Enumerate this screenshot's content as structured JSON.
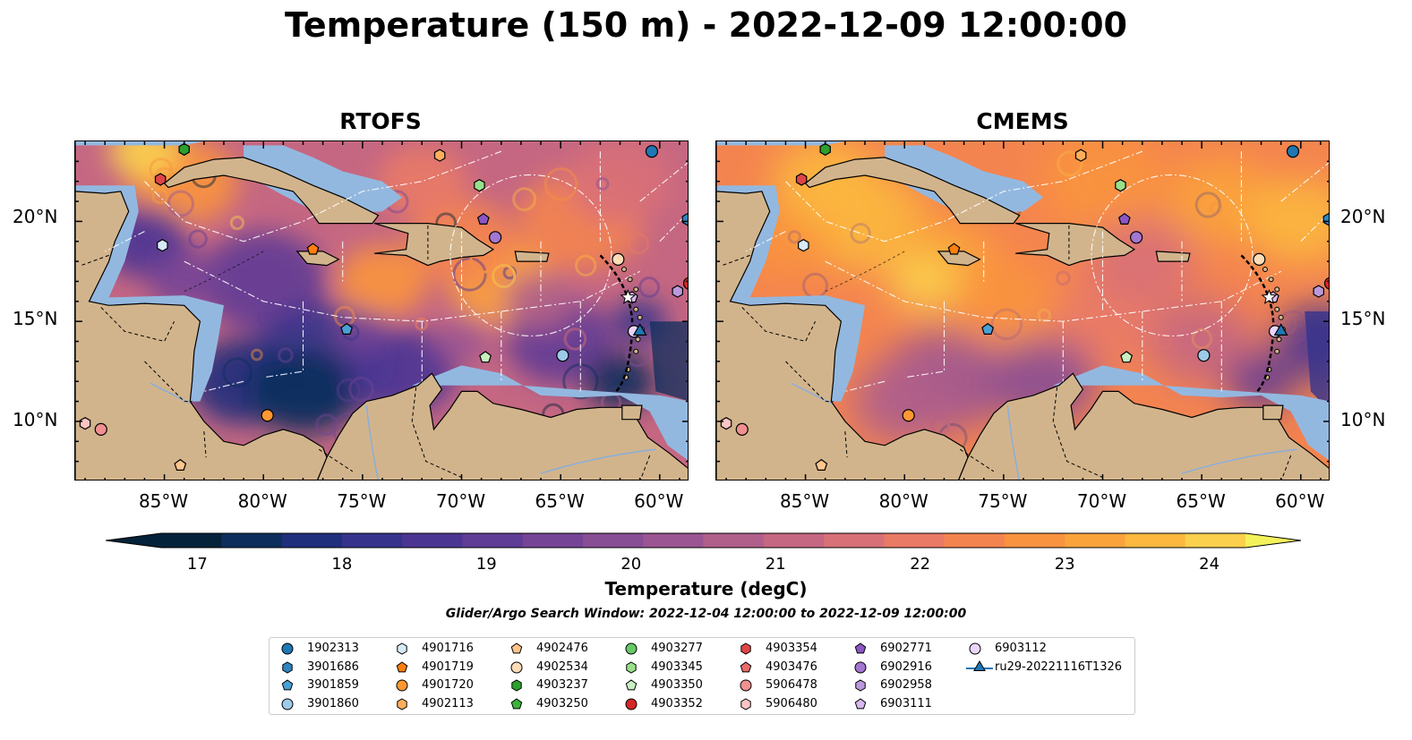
{
  "title": "Temperature (150 m) - 2022-12-09 12:00:00",
  "panels": [
    {
      "title": "RTOFS"
    },
    {
      "title": "CMEMS"
    }
  ],
  "axes": {
    "lon_ticks": [
      "85°W",
      "80°W",
      "75°W",
      "70°W",
      "65°W",
      "60°W"
    ],
    "lat_ticks": [
      "20°N",
      "15°N",
      "10°N"
    ]
  },
  "colorbar": {
    "label": "Temperature (degC)",
    "ticks": [
      "17",
      "18",
      "19",
      "20",
      "21",
      "22",
      "23",
      "24"
    ],
    "min": 17,
    "max": 24.5,
    "colors": [
      "#04223a",
      "#0d2e5c",
      "#1f2f7c",
      "#35338c",
      "#4b3593",
      "#5f3c95",
      "#754496",
      "#874d95",
      "#9b5592",
      "#b05f8b",
      "#c56782",
      "#d87078",
      "#e97a66",
      "#f4844f",
      "#f9933f",
      "#fba33b",
      "#fcb83f",
      "#fbd04c"
    ],
    "extend_low_color": "#04223a",
    "extend_high_color": "#f4f25a"
  },
  "search_window": "Glider/Argo Search Window: 2022-12-04 12:00:00 to 2022-12-09 12:00:00",
  "legend": [
    {
      "label": "1902313",
      "marker": "circle",
      "color": "#1f77b4"
    },
    {
      "label": "3901686",
      "marker": "hexagon",
      "color": "#2f85c1"
    },
    {
      "label": "3901859",
      "marker": "pentagon",
      "color": "#4aa0d5"
    },
    {
      "label": "3901860",
      "marker": "circle",
      "color": "#9ecae9"
    },
    {
      "label": "4901716",
      "marker": "hexagon",
      "color": "#d6eaf8"
    },
    {
      "label": "4901719",
      "marker": "pentagon",
      "color": "#ff7f0e"
    },
    {
      "label": "4901720",
      "marker": "circle",
      "color": "#ff9832"
    },
    {
      "label": "4902113",
      "marker": "hexagon",
      "color": "#ffae5c"
    },
    {
      "label": "4902476",
      "marker": "pentagon",
      "color": "#ffc58c"
    },
    {
      "label": "4902534",
      "marker": "circle",
      "color": "#ffdcb8"
    },
    {
      "label": "4903237",
      "marker": "hexagon",
      "color": "#2ca02c"
    },
    {
      "label": "4903250",
      "marker": "pentagon",
      "color": "#3cb43c"
    },
    {
      "label": "4903277",
      "marker": "circle",
      "color": "#66c966"
    },
    {
      "label": "4903345",
      "marker": "hexagon",
      "color": "#98df8a"
    },
    {
      "label": "4903350",
      "marker": "pentagon",
      "color": "#c8f0c0"
    },
    {
      "label": "4903352",
      "marker": "circle",
      "color": "#d62728"
    },
    {
      "label": "4903354",
      "marker": "hexagon",
      "color": "#e04546"
    },
    {
      "label": "4903476",
      "marker": "pentagon",
      "color": "#ea6a6a"
    },
    {
      "label": "5906478",
      "marker": "circle",
      "color": "#f09090"
    },
    {
      "label": "5906480",
      "marker": "hexagon",
      "color": "#ffc4c4"
    },
    {
      "label": "6902771",
      "marker": "pentagon",
      "color": "#8c56c4"
    },
    {
      "label": "6902916",
      "marker": "circle",
      "color": "#a377d1"
    },
    {
      "label": "6902958",
      "marker": "hexagon",
      "color": "#bb99de"
    },
    {
      "label": "6903111",
      "marker": "pentagon",
      "color": "#d6b8ee"
    },
    {
      "label": "6903112",
      "marker": "circle",
      "color": "#ead6fa"
    },
    {
      "label": "ru29-20221116T1326",
      "marker": "triangle-line",
      "color": "#1f77b4"
    }
  ],
  "map_extent": {
    "lon": [
      -89.5,
      -58.5
    ],
    "lat": [
      7,
      24
    ]
  },
  "map_colors": {
    "land": "#d2b48c",
    "shallow": "#93b8e0",
    "deep_pacific": "#04223a"
  },
  "observations": [
    {
      "id": "1902313",
      "lon": -60.4,
      "lat": 23.5
    },
    {
      "id": "3901686",
      "lon": -58.6,
      "lat": 20.1
    },
    {
      "id": "3901859",
      "lon": -75.8,
      "lat": 14.6
    },
    {
      "id": "3901860",
      "lon": -64.9,
      "lat": 13.3
    },
    {
      "id": "4901716",
      "lon": -85.1,
      "lat": 18.8
    },
    {
      "id": "4901719",
      "lon": -77.5,
      "lat": 18.6
    },
    {
      "id": "4901720",
      "lon": -79.8,
      "lat": 10.3
    },
    {
      "id": "4902113",
      "lon": -71.1,
      "lat": 23.3
    },
    {
      "id": "4902476",
      "lon": -84.2,
      "lat": 7.8
    },
    {
      "id": "4902534",
      "lon": -62.1,
      "lat": 18.1
    },
    {
      "id": "4903237",
      "lon": -84.0,
      "lat": 23.6
    },
    {
      "id": "4903345",
      "lon": -69.1,
      "lat": 21.8
    },
    {
      "id": "4903350",
      "lon": -68.8,
      "lat": 13.2
    },
    {
      "id": "4903354",
      "lon": -85.2,
      "lat": 22.1
    },
    {
      "id": "5906478",
      "lon": -88.2,
      "lat": 9.6
    },
    {
      "id": "5906480",
      "lon": -89.0,
      "lat": 9.9
    },
    {
      "id": "6902771",
      "lon": -68.9,
      "lat": 20.1
    },
    {
      "id": "6902916",
      "lon": -68.3,
      "lat": 19.2
    },
    {
      "id": "6902958",
      "lon": -59.1,
      "lat": 16.5
    },
    {
      "id": "4903352",
      "lon": -58.5,
      "lat": 16.9
    },
    {
      "id": "6903111",
      "lon": -61.4,
      "lat": 16.2
    },
    {
      "id": "6903112",
      "lon": -61.3,
      "lat": 14.5
    },
    {
      "id": "ru29-20221116T1326",
      "lon": -61.0,
      "lat": 14.5
    }
  ]
}
